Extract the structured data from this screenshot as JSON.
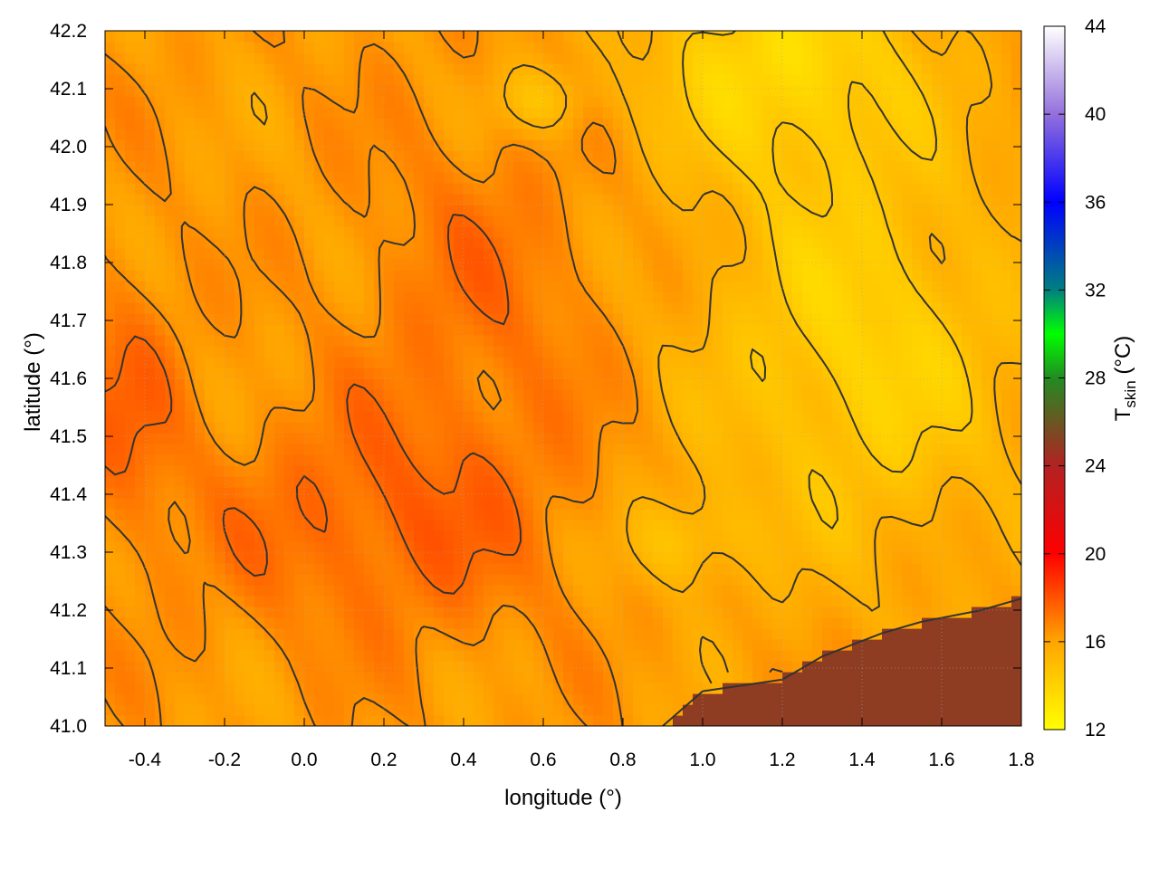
{
  "chart_data": {
    "type": "heatmap",
    "title": "",
    "xlabel": "longitude (°)",
    "ylabel": "latitude (°)",
    "xlim": [
      -0.5,
      1.8
    ],
    "ylim": [
      41.0,
      42.2
    ],
    "x_ticks": [
      "-0.4",
      "-0.2",
      "0.0",
      "0.2",
      "0.4",
      "0.6",
      "0.8",
      "1.0",
      "1.2",
      "1.4",
      "1.6",
      "1.8"
    ],
    "y_ticks": [
      "41.0",
      "41.1",
      "41.2",
      "41.3",
      "41.4",
      "41.5",
      "41.6",
      "41.7",
      "41.8",
      "41.9",
      "42.0",
      "42.1",
      "42.2"
    ],
    "grid": true,
    "colorbar": {
      "label_main": "T",
      "label_sub": "skin",
      "label_unit": " (°C)",
      "range": [
        12,
        44
      ],
      "ticks": [
        "12",
        "16",
        "20",
        "24",
        "28",
        "32",
        "36",
        "40",
        "44"
      ],
      "palette": [
        {
          "value": 12,
          "color": "#ffff00"
        },
        {
          "value": 16,
          "color": "#ffa500"
        },
        {
          "value": 20,
          "color": "#ff0000"
        },
        {
          "value": 24,
          "color": "#b22222"
        },
        {
          "value": 28,
          "color": "#228b22"
        },
        {
          "value": 30,
          "color": "#00ff00"
        },
        {
          "value": 32,
          "color": "#008080"
        },
        {
          "value": 36,
          "color": "#0000ff"
        },
        {
          "value": 40,
          "color": "#9370db"
        },
        {
          "value": 44,
          "color": "#ffffff"
        }
      ]
    },
    "features": {
      "sea_value": 25,
      "coastline": [
        [
          0.9,
          41.0
        ],
        [
          1.0,
          41.06
        ],
        [
          1.2,
          41.08
        ],
        [
          1.3,
          41.12
        ],
        [
          1.45,
          41.16
        ],
        [
          1.55,
          41.18
        ],
        [
          1.7,
          41.2
        ],
        [
          1.8,
          41.22
        ]
      ],
      "land_range": [
        13,
        19
      ]
    },
    "contour_color": "#333333"
  }
}
